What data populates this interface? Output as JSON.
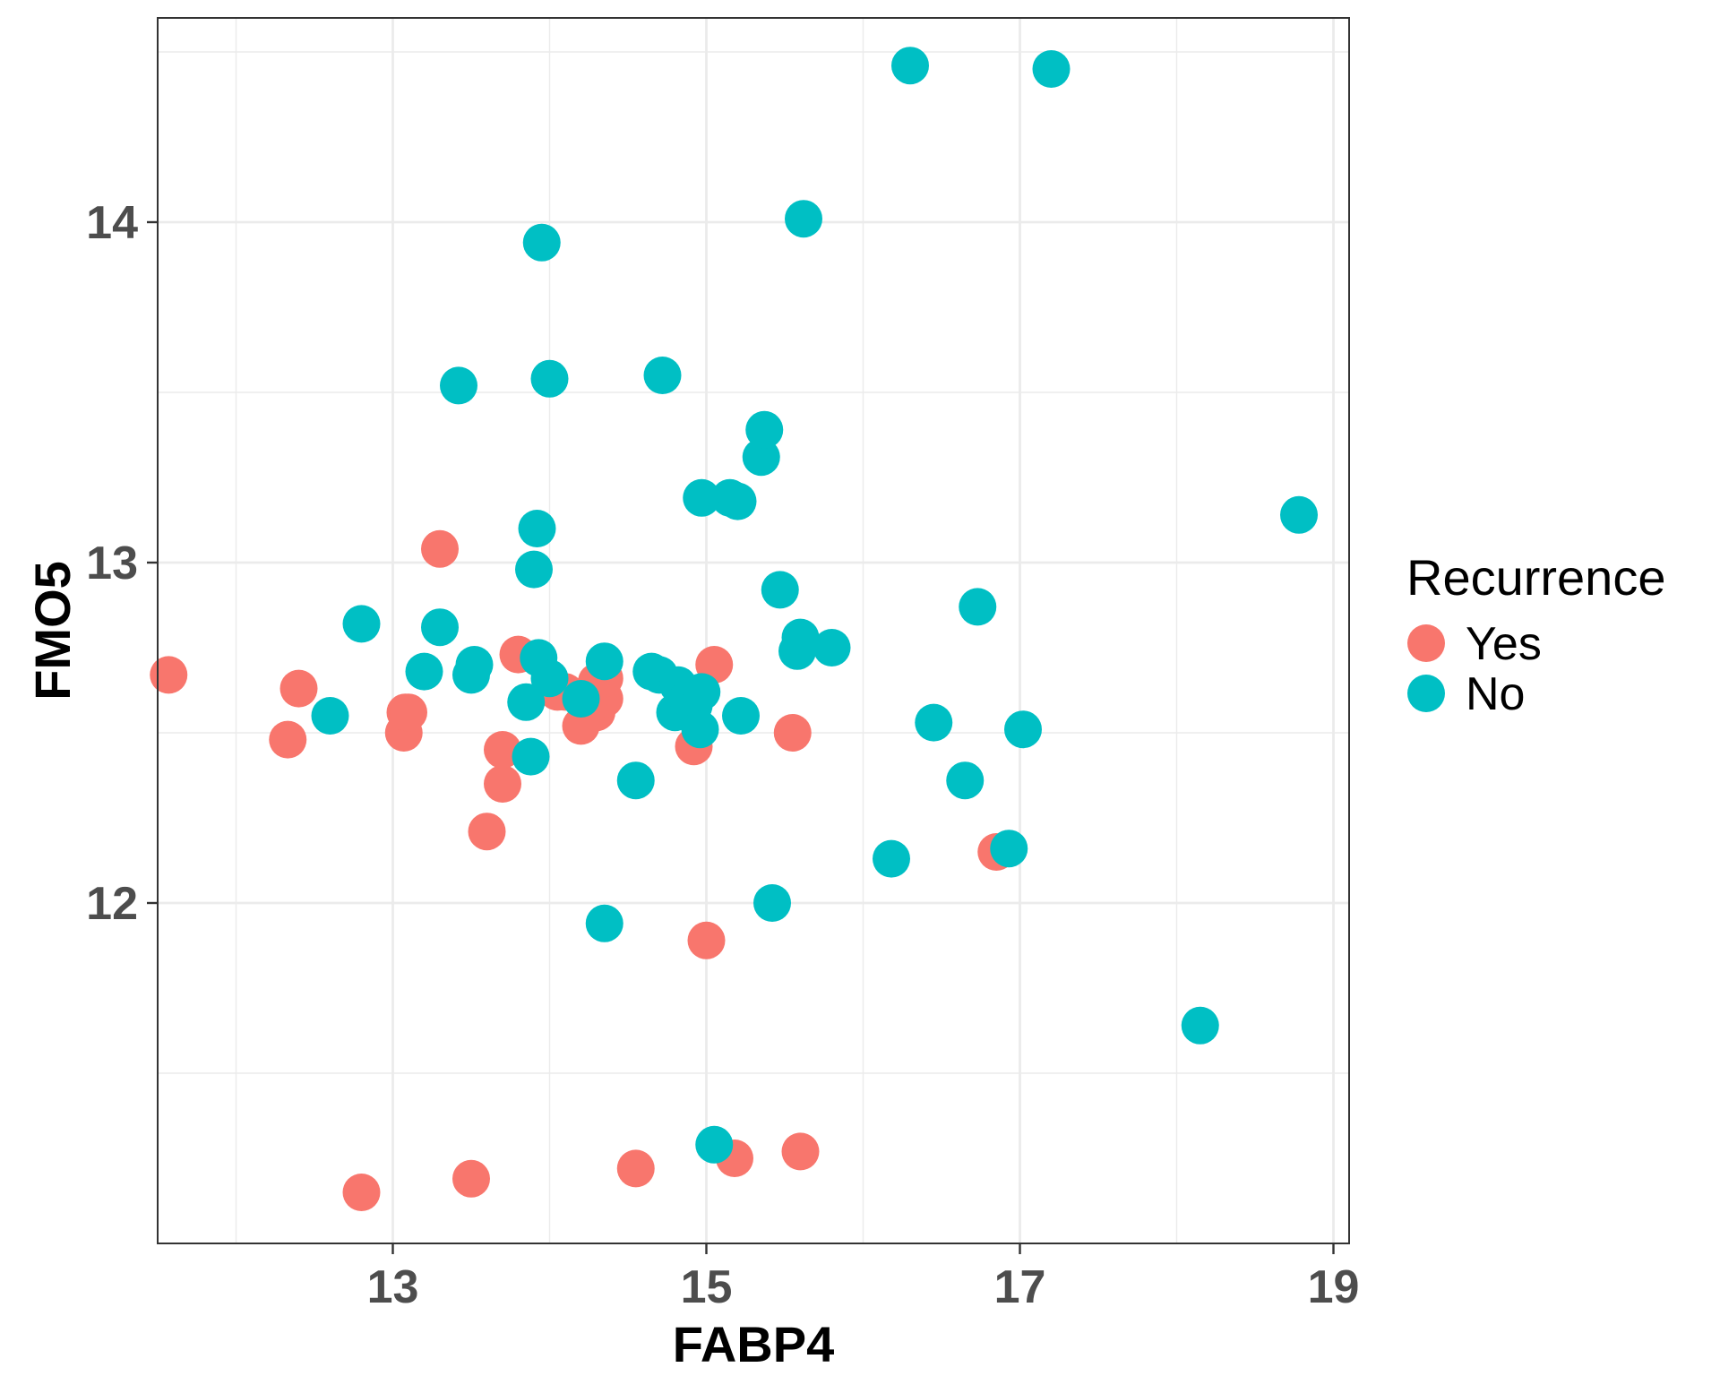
{
  "chart_data": {
    "type": "scatter",
    "title": "",
    "xlabel": "FABP4",
    "ylabel": "FMO5",
    "xlim": [
      11.5,
      19.1
    ],
    "ylim": [
      11.0,
      14.6
    ],
    "x_ticks": [
      13,
      15,
      17,
      19
    ],
    "x_tick_labels": [
      "13",
      "15",
      "17",
      "19"
    ],
    "y_ticks": [
      12,
      13,
      14
    ],
    "y_tick_labels": [
      "12",
      "13",
      "14"
    ],
    "grid": true,
    "legend": {
      "title": "Recurrence",
      "position": "right",
      "entries": [
        "Yes",
        "No"
      ]
    },
    "series": [
      {
        "name": "Yes",
        "color": "#F8766D",
        "points": [
          [
            11.57,
            12.67
          ],
          [
            12.33,
            12.48
          ],
          [
            12.4,
            12.63
          ],
          [
            13.07,
            12.5
          ],
          [
            13.08,
            12.56
          ],
          [
            13.1,
            12.56
          ],
          [
            13.3,
            13.04
          ],
          [
            13.6,
            12.21
          ],
          [
            13.7,
            12.35
          ],
          [
            13.7,
            12.45
          ],
          [
            13.8,
            12.73
          ],
          [
            14.05,
            12.62
          ],
          [
            14.1,
            12.62
          ],
          [
            14.2,
            12.52
          ],
          [
            14.3,
            12.56
          ],
          [
            14.3,
            12.65
          ],
          [
            14.35,
            12.6
          ],
          [
            14.35,
            12.66
          ],
          [
            14.92,
            12.46
          ],
          [
            15.05,
            12.7
          ],
          [
            15.55,
            12.5
          ],
          [
            16.85,
            12.15
          ],
          [
            15.0,
            11.89
          ],
          [
            12.8,
            11.15
          ],
          [
            13.5,
            11.19
          ],
          [
            14.55,
            11.22
          ],
          [
            15.18,
            11.25
          ],
          [
            15.6,
            11.27
          ]
        ]
      },
      {
        "name": "No",
        "color": "#00BFC4",
        "points": [
          [
            12.6,
            12.55
          ],
          [
            12.8,
            12.82
          ],
          [
            13.2,
            12.68
          ],
          [
            13.3,
            12.81
          ],
          [
            13.5,
            12.67
          ],
          [
            13.52,
            12.7
          ],
          [
            13.42,
            13.52
          ],
          [
            13.85,
            12.59
          ],
          [
            13.88,
            12.43
          ],
          [
            13.9,
            12.98
          ],
          [
            13.92,
            13.1
          ],
          [
            13.93,
            12.72
          ],
          [
            13.95,
            13.94
          ],
          [
            14.0,
            12.66
          ],
          [
            14.0,
            13.54
          ],
          [
            14.2,
            12.6
          ],
          [
            14.35,
            12.71
          ],
          [
            14.35,
            11.94
          ],
          [
            14.55,
            12.36
          ],
          [
            14.65,
            12.68
          ],
          [
            14.7,
            12.67
          ],
          [
            14.72,
            13.55
          ],
          [
            14.8,
            12.56
          ],
          [
            14.82,
            12.64
          ],
          [
            14.88,
            12.6
          ],
          [
            14.92,
            12.58
          ],
          [
            14.96,
            12.51
          ],
          [
            14.97,
            12.62
          ],
          [
            14.97,
            13.19
          ],
          [
            15.05,
            11.29
          ],
          [
            15.15,
            13.19
          ],
          [
            15.2,
            13.18
          ],
          [
            15.22,
            12.55
          ],
          [
            15.35,
            13.31
          ],
          [
            15.37,
            13.39
          ],
          [
            15.42,
            12.0
          ],
          [
            15.47,
            12.92
          ],
          [
            15.58,
            12.74
          ],
          [
            15.6,
            12.78
          ],
          [
            15.62,
            14.01
          ],
          [
            15.8,
            12.75
          ],
          [
            16.18,
            12.13
          ],
          [
            16.3,
            14.46
          ],
          [
            16.45,
            12.53
          ],
          [
            16.65,
            12.36
          ],
          [
            16.73,
            12.87
          ],
          [
            16.93,
            12.16
          ],
          [
            17.02,
            12.51
          ],
          [
            17.2,
            14.45
          ],
          [
            18.15,
            11.64
          ],
          [
            18.78,
            13.14
          ]
        ]
      }
    ]
  }
}
